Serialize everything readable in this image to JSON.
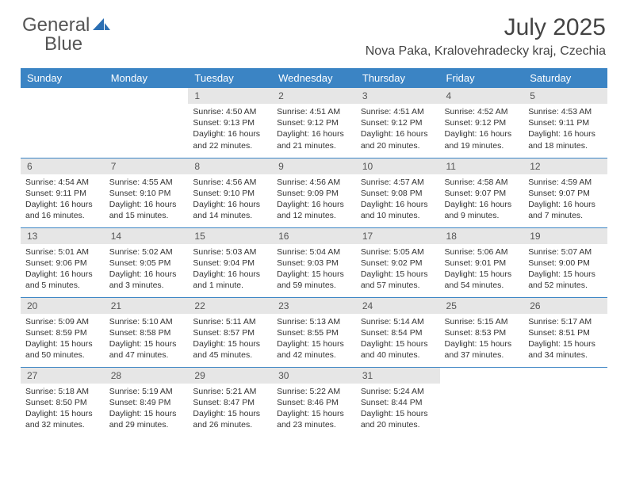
{
  "logo": {
    "text1": "General",
    "text2": "Blue"
  },
  "title": "July 2025",
  "location": "Nova Paka, Kralovehradecky kraj, Czechia",
  "colors": {
    "header_bg": "#3b84c4",
    "header_fg": "#ffffff",
    "daynum_bg": "#e6e6e6",
    "border": "#3b84c4",
    "logo_gray": "#555555",
    "logo_blue": "#3b7fc4"
  },
  "weekdays": [
    "Sunday",
    "Monday",
    "Tuesday",
    "Wednesday",
    "Thursday",
    "Friday",
    "Saturday"
  ],
  "weeks": [
    [
      {
        "n": "",
        "sr": "",
        "ss": "",
        "dl": ""
      },
      {
        "n": "",
        "sr": "",
        "ss": "",
        "dl": ""
      },
      {
        "n": "1",
        "sr": "Sunrise: 4:50 AM",
        "ss": "Sunset: 9:13 PM",
        "dl": "Daylight: 16 hours and 22 minutes."
      },
      {
        "n": "2",
        "sr": "Sunrise: 4:51 AM",
        "ss": "Sunset: 9:12 PM",
        "dl": "Daylight: 16 hours and 21 minutes."
      },
      {
        "n": "3",
        "sr": "Sunrise: 4:51 AM",
        "ss": "Sunset: 9:12 PM",
        "dl": "Daylight: 16 hours and 20 minutes."
      },
      {
        "n": "4",
        "sr": "Sunrise: 4:52 AM",
        "ss": "Sunset: 9:12 PM",
        "dl": "Daylight: 16 hours and 19 minutes."
      },
      {
        "n": "5",
        "sr": "Sunrise: 4:53 AM",
        "ss": "Sunset: 9:11 PM",
        "dl": "Daylight: 16 hours and 18 minutes."
      }
    ],
    [
      {
        "n": "6",
        "sr": "Sunrise: 4:54 AM",
        "ss": "Sunset: 9:11 PM",
        "dl": "Daylight: 16 hours and 16 minutes."
      },
      {
        "n": "7",
        "sr": "Sunrise: 4:55 AM",
        "ss": "Sunset: 9:10 PM",
        "dl": "Daylight: 16 hours and 15 minutes."
      },
      {
        "n": "8",
        "sr": "Sunrise: 4:56 AM",
        "ss": "Sunset: 9:10 PM",
        "dl": "Daylight: 16 hours and 14 minutes."
      },
      {
        "n": "9",
        "sr": "Sunrise: 4:56 AM",
        "ss": "Sunset: 9:09 PM",
        "dl": "Daylight: 16 hours and 12 minutes."
      },
      {
        "n": "10",
        "sr": "Sunrise: 4:57 AM",
        "ss": "Sunset: 9:08 PM",
        "dl": "Daylight: 16 hours and 10 minutes."
      },
      {
        "n": "11",
        "sr": "Sunrise: 4:58 AM",
        "ss": "Sunset: 9:07 PM",
        "dl": "Daylight: 16 hours and 9 minutes."
      },
      {
        "n": "12",
        "sr": "Sunrise: 4:59 AM",
        "ss": "Sunset: 9:07 PM",
        "dl": "Daylight: 16 hours and 7 minutes."
      }
    ],
    [
      {
        "n": "13",
        "sr": "Sunrise: 5:01 AM",
        "ss": "Sunset: 9:06 PM",
        "dl": "Daylight: 16 hours and 5 minutes."
      },
      {
        "n": "14",
        "sr": "Sunrise: 5:02 AM",
        "ss": "Sunset: 9:05 PM",
        "dl": "Daylight: 16 hours and 3 minutes."
      },
      {
        "n": "15",
        "sr": "Sunrise: 5:03 AM",
        "ss": "Sunset: 9:04 PM",
        "dl": "Daylight: 16 hours and 1 minute."
      },
      {
        "n": "16",
        "sr": "Sunrise: 5:04 AM",
        "ss": "Sunset: 9:03 PM",
        "dl": "Daylight: 15 hours and 59 minutes."
      },
      {
        "n": "17",
        "sr": "Sunrise: 5:05 AM",
        "ss": "Sunset: 9:02 PM",
        "dl": "Daylight: 15 hours and 57 minutes."
      },
      {
        "n": "18",
        "sr": "Sunrise: 5:06 AM",
        "ss": "Sunset: 9:01 PM",
        "dl": "Daylight: 15 hours and 54 minutes."
      },
      {
        "n": "19",
        "sr": "Sunrise: 5:07 AM",
        "ss": "Sunset: 9:00 PM",
        "dl": "Daylight: 15 hours and 52 minutes."
      }
    ],
    [
      {
        "n": "20",
        "sr": "Sunrise: 5:09 AM",
        "ss": "Sunset: 8:59 PM",
        "dl": "Daylight: 15 hours and 50 minutes."
      },
      {
        "n": "21",
        "sr": "Sunrise: 5:10 AM",
        "ss": "Sunset: 8:58 PM",
        "dl": "Daylight: 15 hours and 47 minutes."
      },
      {
        "n": "22",
        "sr": "Sunrise: 5:11 AM",
        "ss": "Sunset: 8:57 PM",
        "dl": "Daylight: 15 hours and 45 minutes."
      },
      {
        "n": "23",
        "sr": "Sunrise: 5:13 AM",
        "ss": "Sunset: 8:55 PM",
        "dl": "Daylight: 15 hours and 42 minutes."
      },
      {
        "n": "24",
        "sr": "Sunrise: 5:14 AM",
        "ss": "Sunset: 8:54 PM",
        "dl": "Daylight: 15 hours and 40 minutes."
      },
      {
        "n": "25",
        "sr": "Sunrise: 5:15 AM",
        "ss": "Sunset: 8:53 PM",
        "dl": "Daylight: 15 hours and 37 minutes."
      },
      {
        "n": "26",
        "sr": "Sunrise: 5:17 AM",
        "ss": "Sunset: 8:51 PM",
        "dl": "Daylight: 15 hours and 34 minutes."
      }
    ],
    [
      {
        "n": "27",
        "sr": "Sunrise: 5:18 AM",
        "ss": "Sunset: 8:50 PM",
        "dl": "Daylight: 15 hours and 32 minutes."
      },
      {
        "n": "28",
        "sr": "Sunrise: 5:19 AM",
        "ss": "Sunset: 8:49 PM",
        "dl": "Daylight: 15 hours and 29 minutes."
      },
      {
        "n": "29",
        "sr": "Sunrise: 5:21 AM",
        "ss": "Sunset: 8:47 PM",
        "dl": "Daylight: 15 hours and 26 minutes."
      },
      {
        "n": "30",
        "sr": "Sunrise: 5:22 AM",
        "ss": "Sunset: 8:46 PM",
        "dl": "Daylight: 15 hours and 23 minutes."
      },
      {
        "n": "31",
        "sr": "Sunrise: 5:24 AM",
        "ss": "Sunset: 8:44 PM",
        "dl": "Daylight: 15 hours and 20 minutes."
      },
      {
        "n": "",
        "sr": "",
        "ss": "",
        "dl": ""
      },
      {
        "n": "",
        "sr": "",
        "ss": "",
        "dl": ""
      }
    ]
  ]
}
